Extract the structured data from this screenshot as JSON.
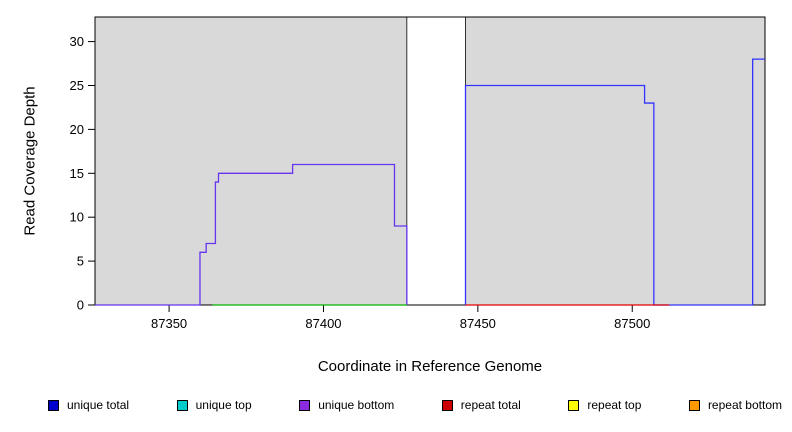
{
  "chart_data": {
    "type": "line",
    "title": "",
    "xlabel": "Coordinate in Reference Genome",
    "ylabel": "Read Coverage Depth",
    "xlim": [
      87326,
      87543
    ],
    "ylim": [
      0,
      32.8
    ],
    "xticks": [
      87350,
      87400,
      87450,
      87500
    ],
    "yticks": [
      0,
      5,
      10,
      15,
      20,
      25,
      30
    ],
    "grid": false,
    "legend_position": "bottom",
    "background_regions": [
      {
        "name": "covered-region-left",
        "x0": 87326,
        "x1": 87427,
        "color": "#d9d9d9"
      },
      {
        "name": "covered-region-right",
        "x0": 87446,
        "x1": 87543,
        "color": "#d9d9d9"
      }
    ],
    "gap_region": {
      "name": "reference-gap",
      "x0": 87427,
      "x1": 87446,
      "fill": "#ffffff",
      "border": "#000000"
    },
    "series": [
      {
        "name": "unique bottom coverage",
        "color": "#6633ee",
        "points": [
          [
            87326,
            0
          ],
          [
            87360,
            0
          ],
          [
            87360,
            6
          ],
          [
            87362,
            6
          ],
          [
            87362,
            7
          ],
          [
            87365,
            7
          ],
          [
            87365,
            14
          ],
          [
            87366,
            14
          ],
          [
            87366,
            15
          ],
          [
            87390,
            15
          ],
          [
            87390,
            16
          ],
          [
            87423,
            16
          ],
          [
            87423,
            9
          ],
          [
            87427,
            9
          ],
          [
            87427,
            0
          ]
        ]
      },
      {
        "name": "unique total coverage",
        "color": "#3333ff",
        "points": [
          [
            87446,
            0
          ],
          [
            87446,
            25
          ],
          [
            87504,
            25
          ],
          [
            87504,
            23
          ],
          [
            87507,
            23
          ],
          [
            87507,
            0
          ],
          [
            87539,
            0
          ],
          [
            87539,
            28
          ],
          [
            87543,
            28
          ]
        ]
      },
      {
        "name": "baseline left (green)",
        "color": "#00b400",
        "points": [
          [
            87364,
            0
          ],
          [
            87427,
            0
          ]
        ]
      },
      {
        "name": "baseline right (red)",
        "color": "#e00000",
        "points": [
          [
            87446,
            0
          ],
          [
            87512,
            0
          ]
        ]
      }
    ]
  },
  "legend": {
    "items": [
      {
        "label": "unique total",
        "color": "#0000cc"
      },
      {
        "label": "unique top",
        "color": "#00cccc"
      },
      {
        "label": "unique bottom",
        "color": "#8a2be2"
      },
      {
        "label": "repeat total",
        "color": "#cc0000"
      },
      {
        "label": "repeat top",
        "color": "#ffff00"
      },
      {
        "label": "repeat bottom",
        "color": "#ff9900"
      }
    ]
  }
}
